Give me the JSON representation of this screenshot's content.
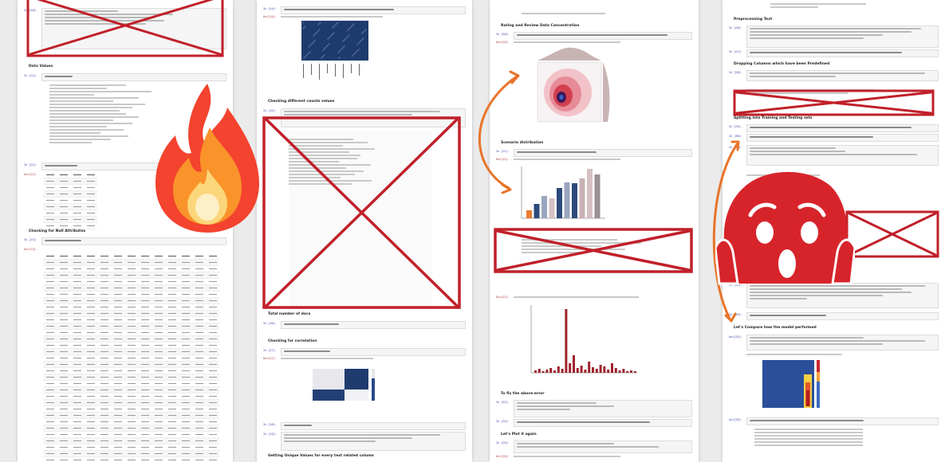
{
  "pages": [
    {
      "id": "page-1",
      "headings": [
        "Data Values",
        "Checking for Null Attributes"
      ],
      "prompts": [
        "In [10]:",
        "In [11]:",
        "In [12]:",
        "Out[12]:",
        "In [13]:",
        "Out[13]:"
      ]
    },
    {
      "id": "page-2",
      "headings": [
        "Checking different counts values",
        "Total number of docs",
        "Checking for correlation",
        "Getting Unique Values for every text related column"
      ],
      "prompts": [
        "In [14]:",
        "Out[14]:",
        "In [15]:",
        "In [16]:",
        "In [17]:",
        "Out[17]:",
        "In [18]:",
        "In [19]:"
      ]
    },
    {
      "id": "page-3",
      "headings": [
        "Rating and Review Data Concentration",
        "Scenario distribution",
        "To fix the above error",
        "Let's Plot it again"
      ],
      "prompts": [
        "In [20]:",
        "Out[20]:",
        "In [21]:",
        "Out[21]:",
        "In [22]:",
        "Out[22]:",
        "In [23]:",
        "In [24]:",
        "In [25]:",
        "Out[25]:"
      ]
    },
    {
      "id": "page-4",
      "headings": [
        "Preprocessing Text",
        "Dropping Columns which have been Predefined",
        "Splitting into Training and Testing sets",
        "Let's Compare how the model performed"
      ],
      "prompts": [
        "In [26]:",
        "In [27]:",
        "In [28]:",
        "In [29]:",
        "In [30]:",
        "In [31]:",
        "In [32]:",
        "In [33]:",
        "Out[33]:"
      ]
    }
  ],
  "decorations": {
    "cross_color": "#c0202a",
    "arrow_color": "#e8742a",
    "fire_icon": "fire-emoji-icon",
    "scream_icon": "screaming-face-icon"
  }
}
